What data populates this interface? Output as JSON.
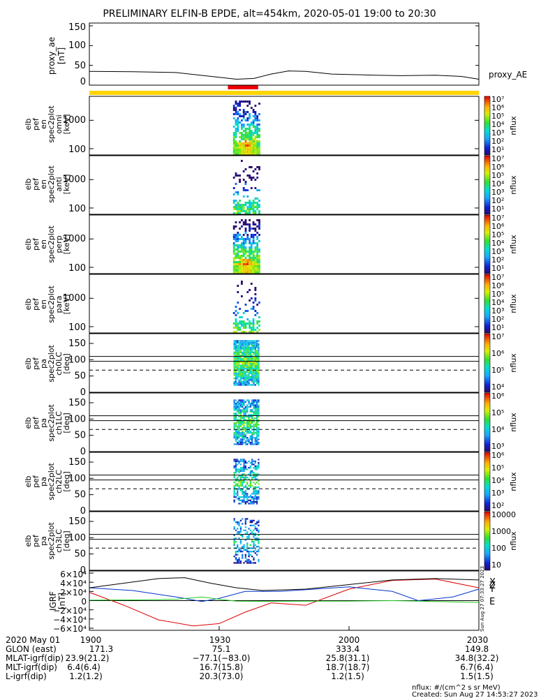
{
  "title": "PRELIMINARY ELFIN-B EPDE, alt=454km, 2020-05-01 19:00 to 20:30",
  "colors": {
    "yellow_bar": "#ffd400",
    "red_bar": "#ee0000",
    "igrf_x": "#dd0000",
    "igrf_y": "#0033cc",
    "igrf_z": "#000000",
    "igrf_e": "#22cc22",
    "igrf_dz": "#22cc22"
  },
  "panels": {
    "ae": {
      "ylabel": [
        "proxy_ae",
        "[nT]"
      ],
      "legend": "proxy_AE",
      "ticks": [
        "150",
        "100",
        "50",
        "0"
      ]
    },
    "en_omni": {
      "ylabel": [
        "elb",
        "pef",
        "en",
        "spec2plot",
        "omni",
        "[keV]"
      ],
      "ticks": [
        "1000",
        "100"
      ]
    },
    "en_anti": {
      "ylabel": [
        "elb",
        "pef",
        "en",
        "spec2plot",
        "anti",
        "[keV]"
      ],
      "ticks": [
        "1000",
        "100"
      ]
    },
    "en_perp": {
      "ylabel": [
        "elb",
        "pef",
        "en",
        "spec2plot",
        "perp",
        "[keV]"
      ],
      "ticks": [
        "1000",
        "100"
      ]
    },
    "en_para": {
      "ylabel": [
        "elb",
        "pef",
        "en",
        "spec2plot",
        "para",
        "[keV]"
      ],
      "ticks": [
        "1000",
        "100"
      ]
    },
    "pa_ch0": {
      "ylabel": [
        "elb",
        "pef",
        "pa",
        "spec2plot",
        "ch0LC",
        "[deg]"
      ],
      "ticks": [
        "150",
        "100",
        "50",
        "0"
      ]
    },
    "pa_ch1": {
      "ylabel": [
        "elb",
        "pef",
        "pa",
        "spec2plot",
        "ch1LC",
        "[deg]"
      ],
      "ticks": [
        "150",
        "100",
        "50",
        "0"
      ]
    },
    "pa_ch2": {
      "ylabel": [
        "elb",
        "pef",
        "pa",
        "spec2plot",
        "ch2LC",
        "[deg]"
      ],
      "ticks": [
        "150",
        "100",
        "50",
        "0"
      ]
    },
    "pa_ch3": {
      "ylabel": [
        "elb",
        "pef",
        "pa",
        "spec2plot",
        "ch3LC",
        "[deg]"
      ],
      "ticks": [
        "150",
        "100",
        "50",
        "0"
      ]
    },
    "igrf": {
      "ylabel": [
        "IGRF",
        "[nT]"
      ],
      "ticks": [
        "6×10⁴",
        "4×10⁴",
        "2×10⁴",
        "0",
        "−2×10⁴",
        "−4×10⁴",
        "−6×10⁴"
      ],
      "legend": [
        "X",
        "Y",
        "Z",
        "E"
      ],
      "dz_label": "dZ",
      "stamp": "Sun Aug 27 07:33:27 2023"
    }
  },
  "colorbars": [
    {
      "ticks": [
        "10⁷",
        "10⁶",
        "10⁵",
        "10⁴",
        "10³",
        "10²",
        "10¹"
      ],
      "unit": "nflux"
    },
    {
      "ticks": [
        "10⁷",
        "10⁶",
        "10⁵",
        "10⁴",
        "10³",
        "10²",
        "10¹"
      ],
      "unit": "nflux"
    },
    {
      "ticks": [
        "10⁷",
        "10⁶",
        "10⁵",
        "10⁴",
        "10³",
        "10²",
        "10¹"
      ],
      "unit": "nflux"
    },
    {
      "ticks": [
        "10⁷",
        "10⁶",
        "10⁵",
        "10⁴",
        "10³",
        "10²",
        "10¹"
      ],
      "unit": "nflux"
    },
    {
      "ticks": [
        "10⁷",
        "10⁶",
        "10⁵",
        "10⁴"
      ],
      "unit": "nflux"
    },
    {
      "ticks": [
        "10⁶",
        "10⁵",
        "10⁴",
        "10³"
      ],
      "unit": "nflux"
    },
    {
      "ticks": [
        "10⁶",
        "10⁵",
        "10⁴",
        "10³",
        "10²"
      ],
      "unit": "nflux"
    },
    {
      "ticks": [
        "10000",
        "1000",
        "100",
        "10"
      ],
      "unit": "nflux"
    }
  ],
  "time_axis": [
    "1900",
    "1930",
    "2000",
    "2030"
  ],
  "ephemeris": {
    "labels": [
      "2020 May 01",
      "GLON (east)",
      "MLAT-igrf(dip)",
      "MLT-igrf(dip)",
      "L-igrf(dip)"
    ],
    "columns": [
      [
        "",
        "171.3",
        "23.9(21.2)",
        "6.4(6.4)",
        "1.2(1.2)"
      ],
      [
        "",
        "75.1",
        "−77.1(−83.0)",
        "16.7(15.8)",
        "20.3(73.0)"
      ],
      [
        "",
        "333.4",
        "25.8(31.1)",
        "18.7(18.7)",
        "1.2(1.5)"
      ],
      [
        "",
        "149.8",
        "34.8(32.2)",
        "6.7(6.4)",
        "1.5(1.5)"
      ]
    ]
  },
  "footer": {
    "units": "nflux: #/(cm^2 s sr MeV)",
    "created": "Created: Sun Aug 27 14:53:27 2023"
  },
  "chart_data": {
    "type": "heatmap",
    "time_range": [
      "2020-05-01 19:00",
      "2020-05-01 20:30"
    ],
    "science_zone_minutes": [
      32,
      39
    ],
    "proxy_ae": {
      "t_minutes": [
        0,
        10,
        20,
        30,
        34,
        38,
        42,
        46,
        50,
        56,
        60,
        66,
        72,
        80,
        86,
        90
      ],
      "values": [
        35,
        34,
        32,
        20,
        15,
        17,
        28,
        36,
        35,
        28,
        27,
        25,
        24,
        25,
        22,
        15
      ],
      "ylim": [
        0,
        150
      ]
    },
    "energy_spectra": {
      "ylim_keV": [
        60,
        7000
      ],
      "scale": "log",
      "t_range_minutes": [
        33.2,
        39.5
      ],
      "nflux_range": [
        10,
        10000000
      ]
    },
    "pitch_angle_spectra": {
      "ylim_deg": [
        0,
        180
      ],
      "loss_cone_deg": 110,
      "anti_loss_cone_deg": 95,
      "dashed_line_deg": 68
    },
    "igrf": {
      "ylim": [
        -60000,
        60000
      ],
      "series": [
        {
          "name": "X",
          "t_minutes": [
            0,
            8,
            16,
            24,
            30,
            36,
            42,
            50,
            60,
            70,
            80,
            90
          ],
          "values": [
            18000,
            -10000,
            -42000,
            -55000,
            -50000,
            -25000,
            -5000,
            -10000,
            25000,
            44000,
            47000,
            28000
          ]
        },
        {
          "name": "Y",
          "t_minutes": [
            0,
            10,
            20,
            26,
            30,
            36,
            44,
            52,
            60,
            70,
            76,
            84,
            90
          ],
          "values": [
            28000,
            22000,
            8000,
            -2000,
            5000,
            20000,
            20000,
            25000,
            30000,
            20000,
            0,
            8000,
            25000
          ]
        },
        {
          "name": "Z",
          "t_minutes": [
            0,
            8,
            16,
            22,
            28,
            34,
            40,
            50,
            60,
            70,
            80,
            90
          ],
          "values": [
            28000,
            38000,
            48000,
            50000,
            38000,
            28000,
            22000,
            25000,
            35000,
            45000,
            48000,
            45000
          ]
        },
        {
          "name": "E",
          "t_minutes": [
            0,
            10,
            20,
            26,
            30,
            34,
            40,
            50,
            60,
            70,
            80,
            90
          ],
          "values": [
            1000,
            1500,
            3000,
            8000,
            3000,
            -1000,
            -1500,
            -1200,
            -1000,
            0,
            -2000,
            -4000
          ]
        }
      ]
    }
  }
}
